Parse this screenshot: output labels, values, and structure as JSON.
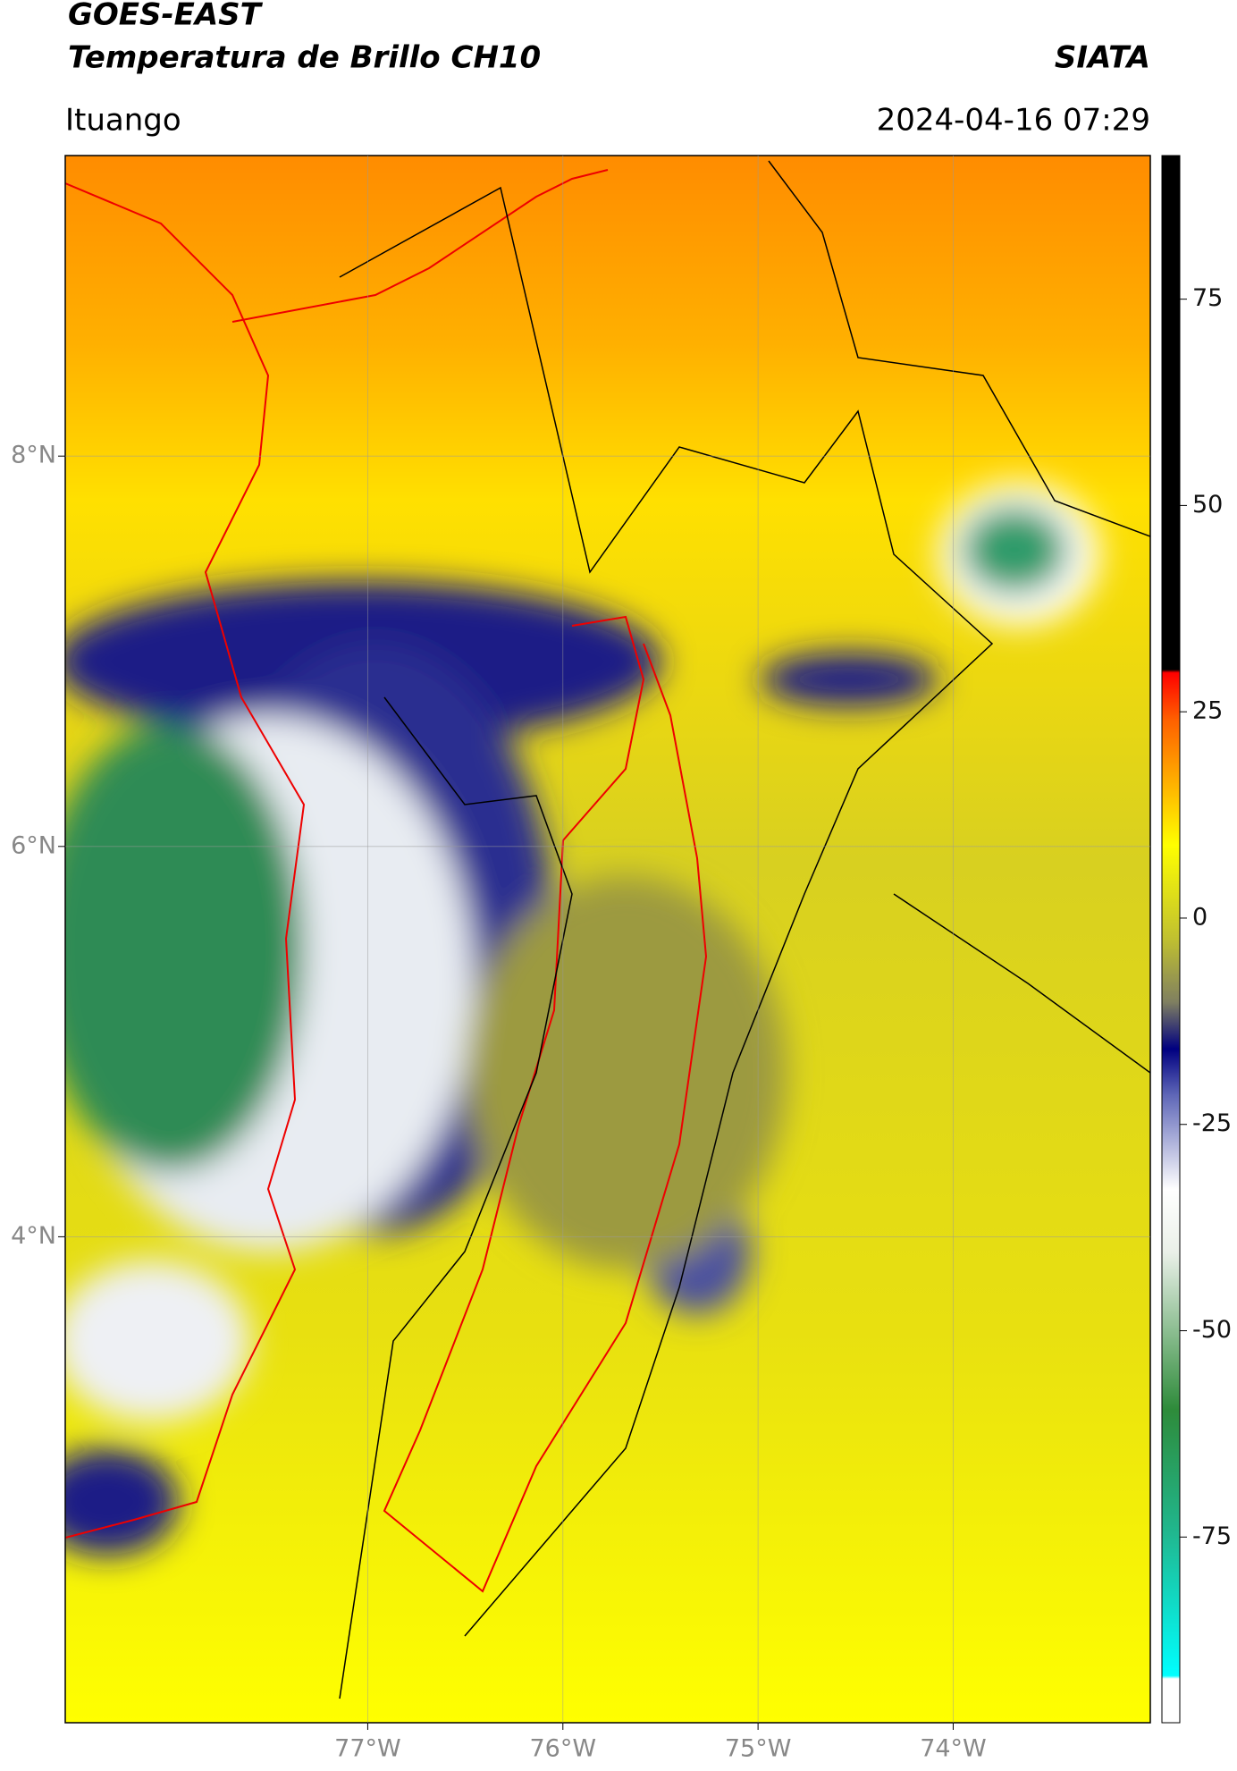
{
  "header": {
    "title": "GOES-EAST",
    "subtitle": "Temperatura de Brillo CH10",
    "source": "SIATA",
    "location": "Ituango",
    "timestamp": "2024-04-16 07:29"
  },
  "map": {
    "xlim": [
      -78.55,
      -72.99
    ],
    "ylim": [
      1.51,
      9.54
    ],
    "grid": true,
    "xticks": [
      {
        "value": -77,
        "label": "77°W"
      },
      {
        "value": -76,
        "label": "76°W"
      },
      {
        "value": -75,
        "label": "75°W"
      },
      {
        "value": -74,
        "label": "74°W"
      }
    ],
    "yticks": [
      {
        "value": 8,
        "label": "8°N"
      },
      {
        "value": 6,
        "label": "6°N"
      },
      {
        "value": 4,
        "label": "4°N"
      }
    ]
  },
  "colorbar": {
    "lim": [
      -97.5,
      92.4
    ],
    "ticks": [
      75,
      50,
      25,
      0,
      -25,
      -50,
      -75
    ]
  }
}
